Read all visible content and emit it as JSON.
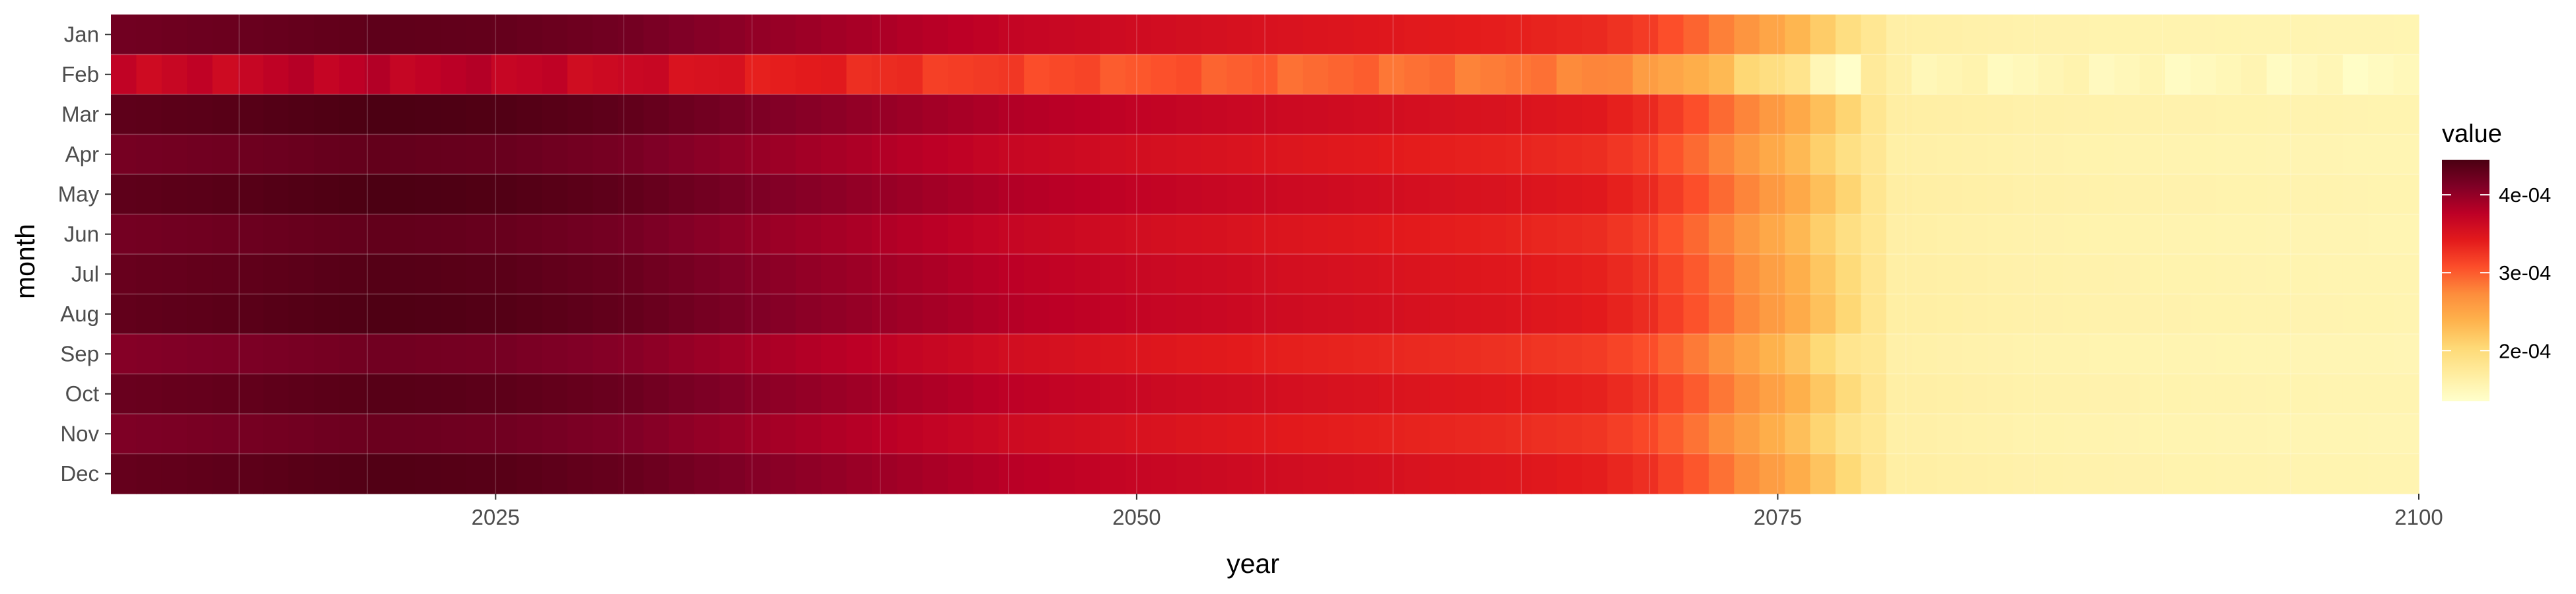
{
  "chart_data": {
    "type": "heatmap",
    "title": "",
    "xlabel": "year",
    "ylabel": "month",
    "x_range": [
      2010,
      2100
    ],
    "x_ticks": [
      2025,
      2050,
      2075,
      2100
    ],
    "x_tick_labels": [
      "2025",
      "2050",
      "2075",
      "2100"
    ],
    "months": [
      "Jan",
      "Feb",
      "Mar",
      "Apr",
      "May",
      "Jun",
      "Jul",
      "Aug",
      "Sep",
      "Oct",
      "Nov",
      "Dec"
    ],
    "grid": true,
    "legend": {
      "title": "value",
      "position": "right",
      "range": [
        0.000135,
        0.000445
      ],
      "ticks": [
        0.0002,
        0.0003,
        0.0004
      ],
      "tick_labels": [
        "2e-04",
        "3e-04",
        "4e-04"
      ],
      "colors": [
        "#ffffcc",
        "#ffeda0",
        "#fed976",
        "#feb24c",
        "#fd8d3c",
        "#fc4e2a",
        "#e31a1c",
        "#bd0026",
        "#800026",
        "#4a0012"
      ]
    },
    "year_profile": {
      "description_keys": [
        "year",
        "value"
      ],
      "points": [
        [
          2010,
          0.00042
        ],
        [
          2015,
          0.000425
        ],
        [
          2020,
          0.000432
        ],
        [
          2025,
          0.000428
        ],
        [
          2030,
          0.000418
        ],
        [
          2035,
          0.0004
        ],
        [
          2040,
          0.000385
        ],
        [
          2045,
          0.00037
        ],
        [
          2050,
          0.00036
        ],
        [
          2055,
          0.000352
        ],
        [
          2060,
          0.000345
        ],
        [
          2065,
          0.000338
        ],
        [
          2068,
          0.000332
        ],
        [
          2070,
          0.00032
        ],
        [
          2072,
          0.000295
        ],
        [
          2074,
          0.000265
        ],
        [
          2076,
          0.000235
        ],
        [
          2078,
          0.000195
        ],
        [
          2080,
          0.000165
        ],
        [
          2085,
          0.00016
        ],
        [
          2090,
          0.000158
        ],
        [
          2095,
          0.000156
        ],
        [
          2100,
          0.000155
        ]
      ]
    },
    "month_offsets": [
      0.0,
      -5.5e-05,
      1.2e-05,
      -3e-06,
      1.2e-05,
      -2e-06,
      6e-06,
      1e-05,
      -1.2e-05,
      5e-06,
      -8e-06,
      8e-06
    ]
  }
}
